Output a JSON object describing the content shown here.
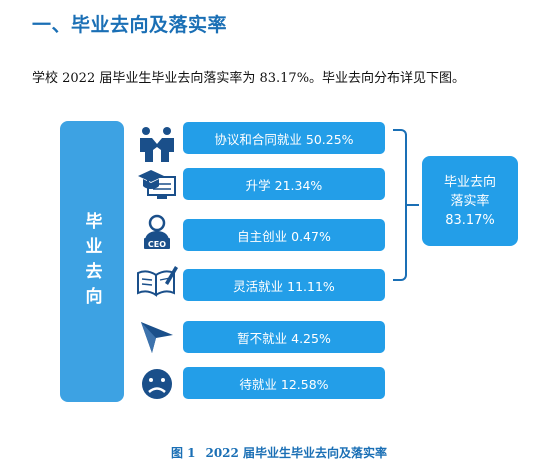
{
  "section": {
    "heading": "一、毕业去向及落实率"
  },
  "intro": "学校 2022 届毕业生毕业去向落实率为 83.17%。毕业去向分布详见下图。",
  "diagram": {
    "category_label": "毕业去向",
    "items": [
      {
        "label": "协议和合同就业 50.25%",
        "icon": "handshake-people-icon"
      },
      {
        "label": "升学 21.34%",
        "icon": "graduation-cap-icon"
      },
      {
        "label": "自主创业 0.47%",
        "icon": "ceo-person-icon"
      },
      {
        "label": "灵活就业 11.11%",
        "icon": "book-pen-icon"
      },
      {
        "label": "暂不就业 4.25%",
        "icon": "paper-plane-icon"
      },
      {
        "label": "待就业 12.58%",
        "icon": "sad-face-icon"
      }
    ],
    "rate": {
      "line1": "毕业去向",
      "line2": "落实率",
      "line3": "83.17%"
    },
    "accent_color": "#239ee8",
    "heading_color": "#1a6fb5"
  },
  "figure": {
    "number": "图 1",
    "caption": "2022 届毕业生毕业去向及落实率"
  }
}
